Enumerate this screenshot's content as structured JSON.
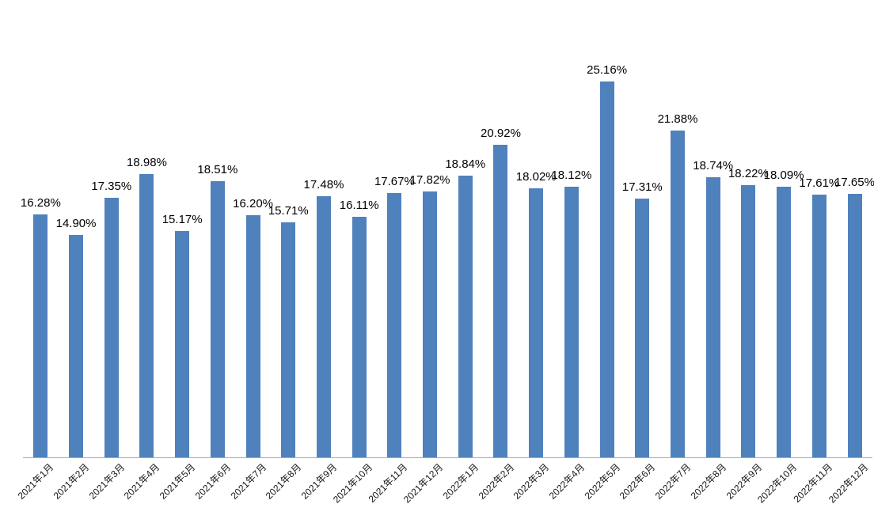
{
  "chart_data": {
    "type": "bar",
    "title": "",
    "xlabel": "",
    "ylabel": "",
    "legend": "none",
    "grid": false,
    "axis_visible": {
      "x": true,
      "y": false
    },
    "ylim": [
      0,
      26
    ],
    "bar_color": "#4F81BD",
    "axis_line_color": "#ABABAB",
    "label_color": "#000000",
    "categories": [
      "2021年1月",
      "2021年2月",
      "2021年3月",
      "2021年4月",
      "2021年5月",
      "2021年6月",
      "2021年7月",
      "2021年8月",
      "2021年9月",
      "2021年10月",
      "2021年11月",
      "2021年12月",
      "2022年1月",
      "2022年2月",
      "2022年3月",
      "2022年4月",
      "2022年5月",
      "2022年6月",
      "2022年7月",
      "2022年8月",
      "2022年9月",
      "2022年10月",
      "2022年11月",
      "2022年12月"
    ],
    "values": [
      16.28,
      14.9,
      17.35,
      18.98,
      15.17,
      18.51,
      16.2,
      15.71,
      17.48,
      16.11,
      17.67,
      17.82,
      18.84,
      20.92,
      18.02,
      18.12,
      25.16,
      17.31,
      21.88,
      18.74,
      18.22,
      18.09,
      17.61,
      17.65
    ],
    "data_labels": [
      "16.28%",
      "14.90%",
      "17.35%",
      "18.98%",
      "15.17%",
      "18.51%",
      "16.20%",
      "15.71%",
      "17.48%",
      "16.11%",
      "17.67%",
      "17.82%",
      "18.84%",
      "20.92%",
      "18.02%",
      "18.12%",
      "25.16%",
      "17.31%",
      "21.88%",
      "18.74%",
      "18.22%",
      "18.09%",
      "17.61%",
      "17.65%"
    ]
  }
}
